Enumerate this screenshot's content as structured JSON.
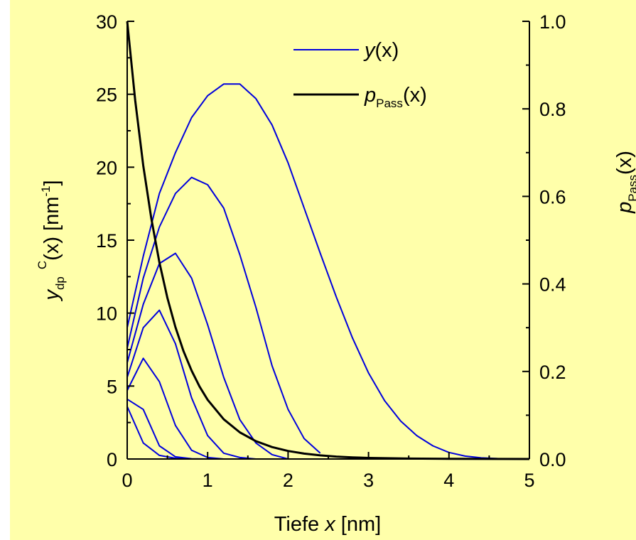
{
  "chart_data": {
    "type": "line",
    "background": "#FFFFAA",
    "x": {
      "title_prefix": "Tiefe ",
      "title_var": "x",
      "title_suffix": " [nm]",
      "lim": [
        0,
        5
      ],
      "ticks": [
        0,
        1,
        2,
        3,
        4,
        5
      ],
      "tick_labels": [
        "0",
        "1",
        "2",
        "3",
        "4",
        "5"
      ]
    },
    "y_left": {
      "title_main": "y",
      "title_sub": "dp",
      "title_sup": "C",
      "title_rest": "(x) [nm",
      "title_unit_sup": "-1",
      "title_close": "]",
      "lim": [
        0,
        30
      ],
      "ticks": [
        0,
        5,
        10,
        15,
        20,
        25,
        30
      ],
      "tick_labels": [
        "0",
        "5",
        "10",
        "15",
        "20",
        "25",
        "30"
      ]
    },
    "y_right": {
      "title_main": "p",
      "title_sub": "Pass",
      "title_rest": "(x)",
      "lim": [
        0,
        1
      ],
      "ticks": [
        0,
        0.2,
        0.4,
        0.6,
        0.8,
        1.0
      ],
      "tick_labels": [
        "0.0",
        "0.2",
        "0.4",
        "0.6",
        "0.8",
        "1.0"
      ]
    },
    "legend": {
      "position": "top-right",
      "items": [
        {
          "label_main": "y",
          "label_sub": "",
          "label_rest": "(x)",
          "color": "#0000DD"
        },
        {
          "label_main": "p",
          "label_sub": "Pass",
          "label_rest": "(x)",
          "color": "#000000"
        }
      ]
    },
    "series": [
      {
        "axis": "left",
        "color": "#0000DD",
        "x": [
          0,
          0.2,
          0.4,
          0.6,
          0.8,
          1.0,
          1.2
        ],
        "y": [
          3.6,
          1.1,
          0.25,
          0.05,
          0,
          0,
          0
        ]
      },
      {
        "axis": "left",
        "color": "#0000DD",
        "x": [
          0,
          0.2,
          0.4,
          0.6,
          0.8,
          1.0,
          1.2
        ],
        "y": [
          4.1,
          3.4,
          0.9,
          0.15,
          0.02,
          0,
          0
        ]
      },
      {
        "axis": "left",
        "color": "#0000DD",
        "x": [
          0,
          0.2,
          0.4,
          0.6,
          0.8,
          1.0,
          1.2
        ],
        "y": [
          4.7,
          6.9,
          5.3,
          2.3,
          0.6,
          0.1,
          0
        ]
      },
      {
        "axis": "left",
        "color": "#0000DD",
        "x": [
          0,
          0.2,
          0.4,
          0.6,
          0.8,
          1.0,
          1.2,
          1.4,
          1.6
        ],
        "y": [
          5.6,
          9.0,
          10.2,
          7.9,
          4.2,
          1.6,
          0.4,
          0.1,
          0
        ]
      },
      {
        "axis": "left",
        "color": "#0000DD",
        "x": [
          0,
          0.2,
          0.4,
          0.6,
          0.8,
          1.0,
          1.2,
          1.4,
          1.6,
          1.8,
          2.0
        ],
        "y": [
          6.6,
          10.6,
          13.4,
          14.1,
          12.4,
          9.2,
          5.6,
          2.7,
          1.1,
          0.3,
          0
        ]
      },
      {
        "axis": "left",
        "color": "#0000DD",
        "x": [
          0,
          0.2,
          0.4,
          0.6,
          0.8,
          1.0,
          1.2,
          1.4,
          1.6,
          1.8,
          2.0,
          2.2,
          2.4
        ],
        "y": [
          7.6,
          12.4,
          15.9,
          18.2,
          19.3,
          18.8,
          17.2,
          14.0,
          10.4,
          6.4,
          3.4,
          1.4,
          0.4
        ]
      },
      {
        "axis": "left",
        "color": "#0000DD",
        "x": [
          0,
          0.2,
          0.4,
          0.6,
          0.8,
          1.0,
          1.2,
          1.4,
          1.6,
          1.8,
          2.0,
          2.2,
          2.4,
          2.6,
          2.8,
          3.0,
          3.2,
          3.4,
          3.6,
          3.8,
          4.0,
          4.2,
          4.4,
          4.6,
          4.8,
          5.0
        ],
        "y": [
          9.0,
          13.9,
          18.2,
          21.0,
          23.4,
          24.9,
          25.7,
          25.7,
          24.7,
          22.9,
          20.3,
          17.2,
          14.1,
          11.1,
          8.3,
          5.9,
          4.0,
          2.6,
          1.6,
          0.9,
          0.45,
          0.2,
          0.08,
          0.03,
          0.01,
          0
        ]
      },
      {
        "axis": "right",
        "color": "#000000",
        "width": 3,
        "x": [
          0,
          0.1,
          0.2,
          0.3,
          0.4,
          0.5,
          0.6,
          0.7,
          0.8,
          0.9,
          1.0,
          1.2,
          1.4,
          1.6,
          1.8,
          2.0,
          2.2,
          2.4,
          2.6,
          2.8,
          3.0,
          3.5,
          4.0,
          5.0
        ],
        "y": [
          1.0,
          0.8187,
          0.6703,
          0.5488,
          0.4493,
          0.3679,
          0.3012,
          0.2466,
          0.2019,
          0.1653,
          0.1353,
          0.0907,
          0.0608,
          0.0408,
          0.0273,
          0.0183,
          0.0123,
          0.0082,
          0.0055,
          0.0037,
          0.0025,
          0.0009,
          0.0003,
          0.0
        ]
      }
    ]
  }
}
